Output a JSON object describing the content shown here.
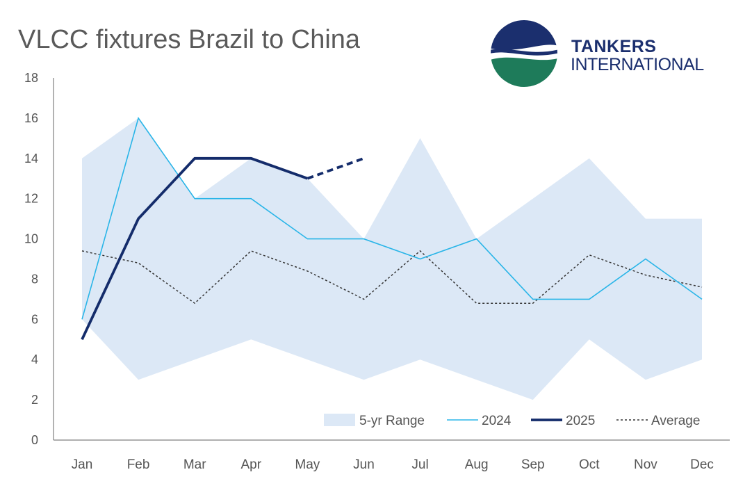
{
  "header": {
    "title": "VLCC fixtures Brazil to China"
  },
  "logo": {
    "line1": "TANKERS",
    "line2": "INTERNATIONAL",
    "colors": {
      "navy": "#1b2f6e",
      "green": "#1e7b5a"
    }
  },
  "colors": {
    "range_fill": "#dce8f6",
    "series_2024": "#29b5e8",
    "series_2025": "#142c6b",
    "average": "#333333"
  },
  "chart_data": {
    "type": "line",
    "title": "VLCC fixtures Brazil to China",
    "xlabel": "",
    "ylabel": "",
    "categories": [
      "Jan",
      "Feb",
      "Mar",
      "Apr",
      "May",
      "Jun",
      "Jul",
      "Aug",
      "Sep",
      "Oct",
      "Nov",
      "Dec"
    ],
    "ylim": [
      0,
      18
    ],
    "yticks": [
      0,
      2,
      4,
      6,
      8,
      10,
      12,
      14,
      16,
      18
    ],
    "grid": false,
    "legend_position": "bottom-right",
    "range": {
      "name": "5-yr Range",
      "low": [
        6,
        3,
        4,
        5,
        4,
        3,
        4,
        3,
        2,
        5,
        3,
        4
      ],
      "high": [
        14,
        16,
        12,
        14,
        13,
        10,
        15,
        10,
        12,
        14,
        11,
        11
      ]
    },
    "series": [
      {
        "name": "2024",
        "values": [
          6,
          16,
          12,
          12,
          10,
          10,
          9,
          10,
          7,
          7,
          9,
          7
        ]
      },
      {
        "name": "2025",
        "values": [
          5,
          11,
          14,
          14,
          13,
          null,
          null,
          null,
          null,
          null,
          null,
          null
        ],
        "projection": [
          null,
          null,
          null,
          null,
          13,
          14,
          null,
          null,
          null,
          null,
          null,
          null
        ]
      },
      {
        "name": "Average",
        "values": [
          9.4,
          8.8,
          6.8,
          9.4,
          8.4,
          7.0,
          9.4,
          6.8,
          6.8,
          9.2,
          8.2,
          7.6
        ]
      }
    ]
  }
}
